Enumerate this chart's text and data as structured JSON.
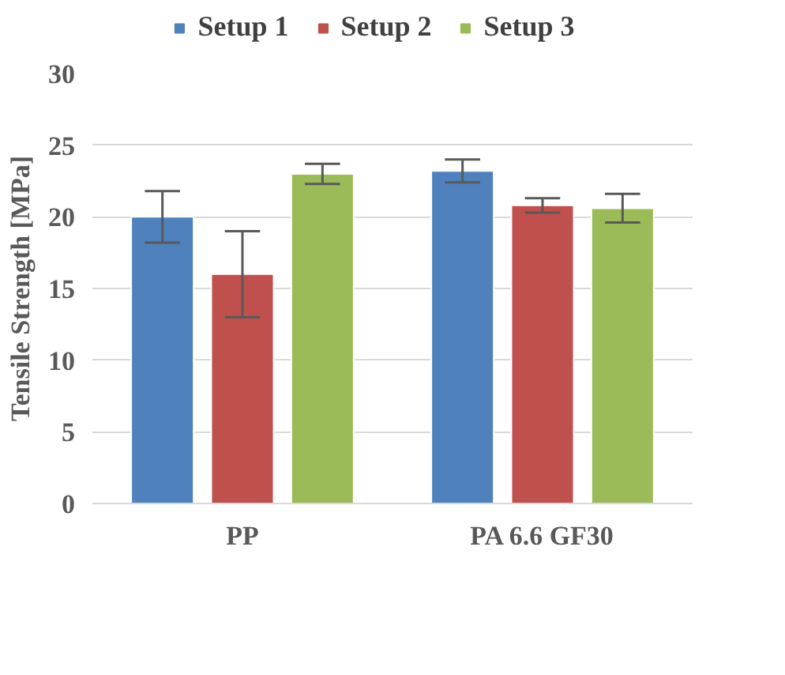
{
  "chart_data": {
    "type": "bar",
    "ylabel": "Tensile Strength [MPa]",
    "categories": [
      "PP",
      "PA 6.6 GF30"
    ],
    "series": [
      {
        "name": "Setup 1",
        "color": "#4f81bd",
        "values": [
          20.0,
          23.2
        ],
        "errors": [
          1.8,
          0.8
        ]
      },
      {
        "name": "Setup 2",
        "color": "#c0504d",
        "values": [
          16.0,
          20.8
        ],
        "errors": [
          3.0,
          0.5
        ]
      },
      {
        "name": "Setup 3",
        "color": "#9bbb59",
        "values": [
          23.0,
          20.6
        ],
        "errors": [
          0.7,
          1.0
        ]
      }
    ],
    "ylim": [
      0,
      30
    ],
    "yticks": [
      0,
      5,
      10,
      15,
      20,
      25,
      30
    ],
    "grid": "y",
    "legend": "top"
  }
}
